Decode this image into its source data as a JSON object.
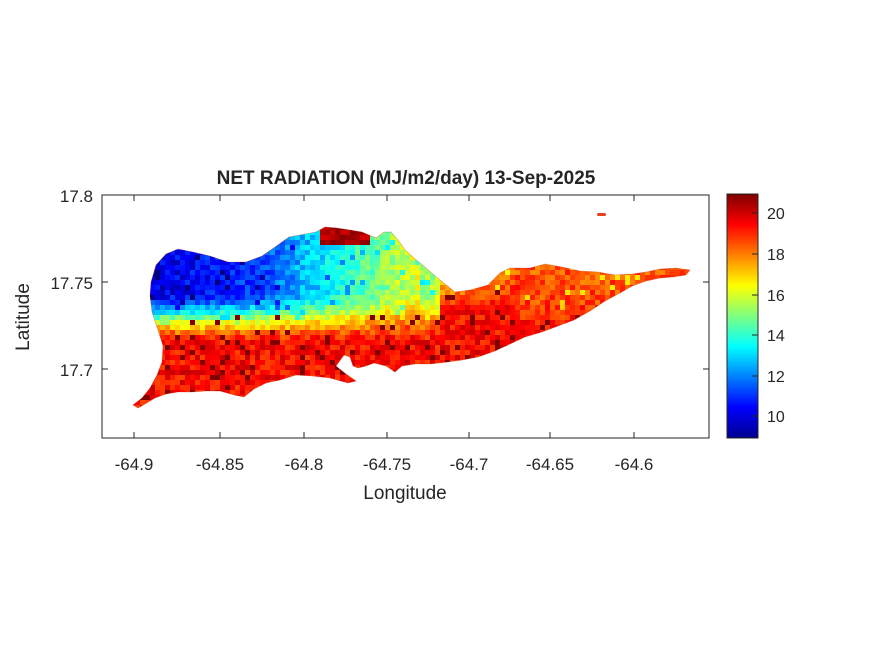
{
  "title": "NET RADIATION (MJ/m2/day) 13-Sep-2025",
  "xlabel": "Longitude",
  "ylabel": "Latitude",
  "x_ticks": [
    "-64.9",
    "-64.85",
    "-64.8",
    "-64.75",
    "-64.7",
    "-64.65",
    "-64.6"
  ],
  "y_ticks": [
    "17.8",
    "17.75",
    "17.7"
  ],
  "colorbar_ticks": [
    "20",
    "18",
    "16",
    "14",
    "12",
    "10"
  ],
  "chart_data": {
    "type": "heatmap",
    "title": "NET RADIATION (MJ/m2/day) 13-Sep-2025",
    "xlabel": "Longitude",
    "ylabel": "Latitude",
    "xlim": [
      -64.92,
      -64.555
    ],
    "ylim": [
      17.66,
      17.8
    ],
    "x_tick_values": [
      -64.9,
      -64.85,
      -64.8,
      -64.75,
      -64.7,
      -64.65,
      -64.6
    ],
    "y_tick_values": [
      17.7,
      17.75,
      17.8
    ],
    "colormap": "jet",
    "clim": [
      9,
      21
    ],
    "colorbar_tick_values": [
      10,
      12,
      14,
      16,
      18,
      20
    ],
    "grid": false,
    "value_pattern": {
      "west_north_min": 10,
      "central_north": 14,
      "south_coast": 19.5,
      "east": 18.5,
      "max": 21
    }
  }
}
